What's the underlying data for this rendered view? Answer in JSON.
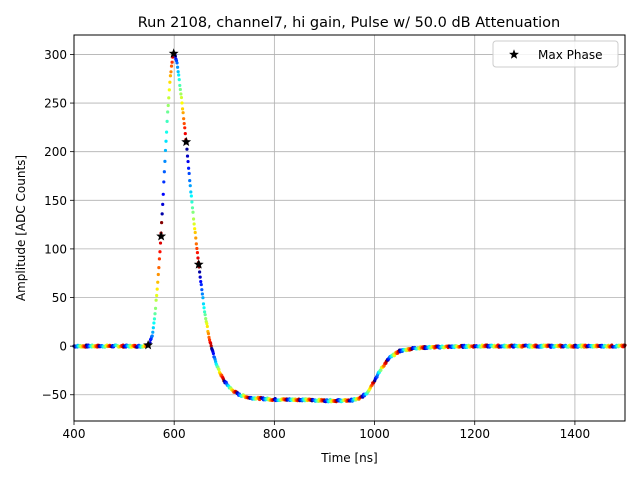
{
  "chart_data": {
    "type": "scatter",
    "title": "Run 2108, channel7, hi gain, Pulse w/ 50.0 dB Attenuation",
    "xlabel": "Time [ns]",
    "ylabel": "Amplitude [ADC Counts]",
    "xlim": [
      400,
      1500
    ],
    "ylim": [
      -77,
      320
    ],
    "xticks": [
      400,
      600,
      800,
      1000,
      1200,
      1400
    ],
    "yticks": [
      -50,
      0,
      50,
      100,
      150,
      200,
      250,
      300
    ],
    "grid": true,
    "legend": {
      "position": "top-right",
      "entries": [
        "Max Phase"
      ]
    },
    "colormap": "jet",
    "series": [
      {
        "name": "Max Phase",
        "marker": "star",
        "color": "#000000",
        "points": [
          {
            "x": 548,
            "y": 1
          },
          {
            "x": 574,
            "y": 113
          },
          {
            "x": 599,
            "y": 301
          },
          {
            "x": 624,
            "y": 210
          },
          {
            "x": 649,
            "y": 84
          }
        ]
      }
    ],
    "pulse_shape": [
      {
        "x": 400,
        "y": 0
      },
      {
        "x": 540,
        "y": 0
      },
      {
        "x": 550,
        "y": 2
      },
      {
        "x": 557,
        "y": 12
      },
      {
        "x": 562,
        "y": 35
      },
      {
        "x": 567,
        "y": 65
      },
      {
        "x": 572,
        "y": 100
      },
      {
        "x": 577,
        "y": 145
      },
      {
        "x": 582,
        "y": 195
      },
      {
        "x": 587,
        "y": 240
      },
      {
        "x": 592,
        "y": 275
      },
      {
        "x": 597,
        "y": 297
      },
      {
        "x": 601,
        "y": 301
      },
      {
        "x": 606,
        "y": 290
      },
      {
        "x": 611,
        "y": 270
      },
      {
        "x": 616,
        "y": 248
      },
      {
        "x": 621,
        "y": 225
      },
      {
        "x": 626,
        "y": 200
      },
      {
        "x": 632,
        "y": 165
      },
      {
        "x": 640,
        "y": 125
      },
      {
        "x": 650,
        "y": 80
      },
      {
        "x": 660,
        "y": 38
      },
      {
        "x": 670,
        "y": 8
      },
      {
        "x": 680,
        "y": -12
      },
      {
        "x": 690,
        "y": -26
      },
      {
        "x": 700,
        "y": -36
      },
      {
        "x": 715,
        "y": -45
      },
      {
        "x": 730,
        "y": -50
      },
      {
        "x": 750,
        "y": -53
      },
      {
        "x": 800,
        "y": -55
      },
      {
        "x": 850,
        "y": -55
      },
      {
        "x": 900,
        "y": -56
      },
      {
        "x": 950,
        "y": -56
      },
      {
        "x": 970,
        "y": -54
      },
      {
        "x": 985,
        "y": -48
      },
      {
        "x": 1000,
        "y": -35
      },
      {
        "x": 1015,
        "y": -22
      },
      {
        "x": 1030,
        "y": -12
      },
      {
        "x": 1050,
        "y": -5
      },
      {
        "x": 1080,
        "y": -2
      },
      {
        "x": 1120,
        "y": -1
      },
      {
        "x": 1200,
        "y": 0
      },
      {
        "x": 1500,
        "y": 0
      }
    ]
  }
}
